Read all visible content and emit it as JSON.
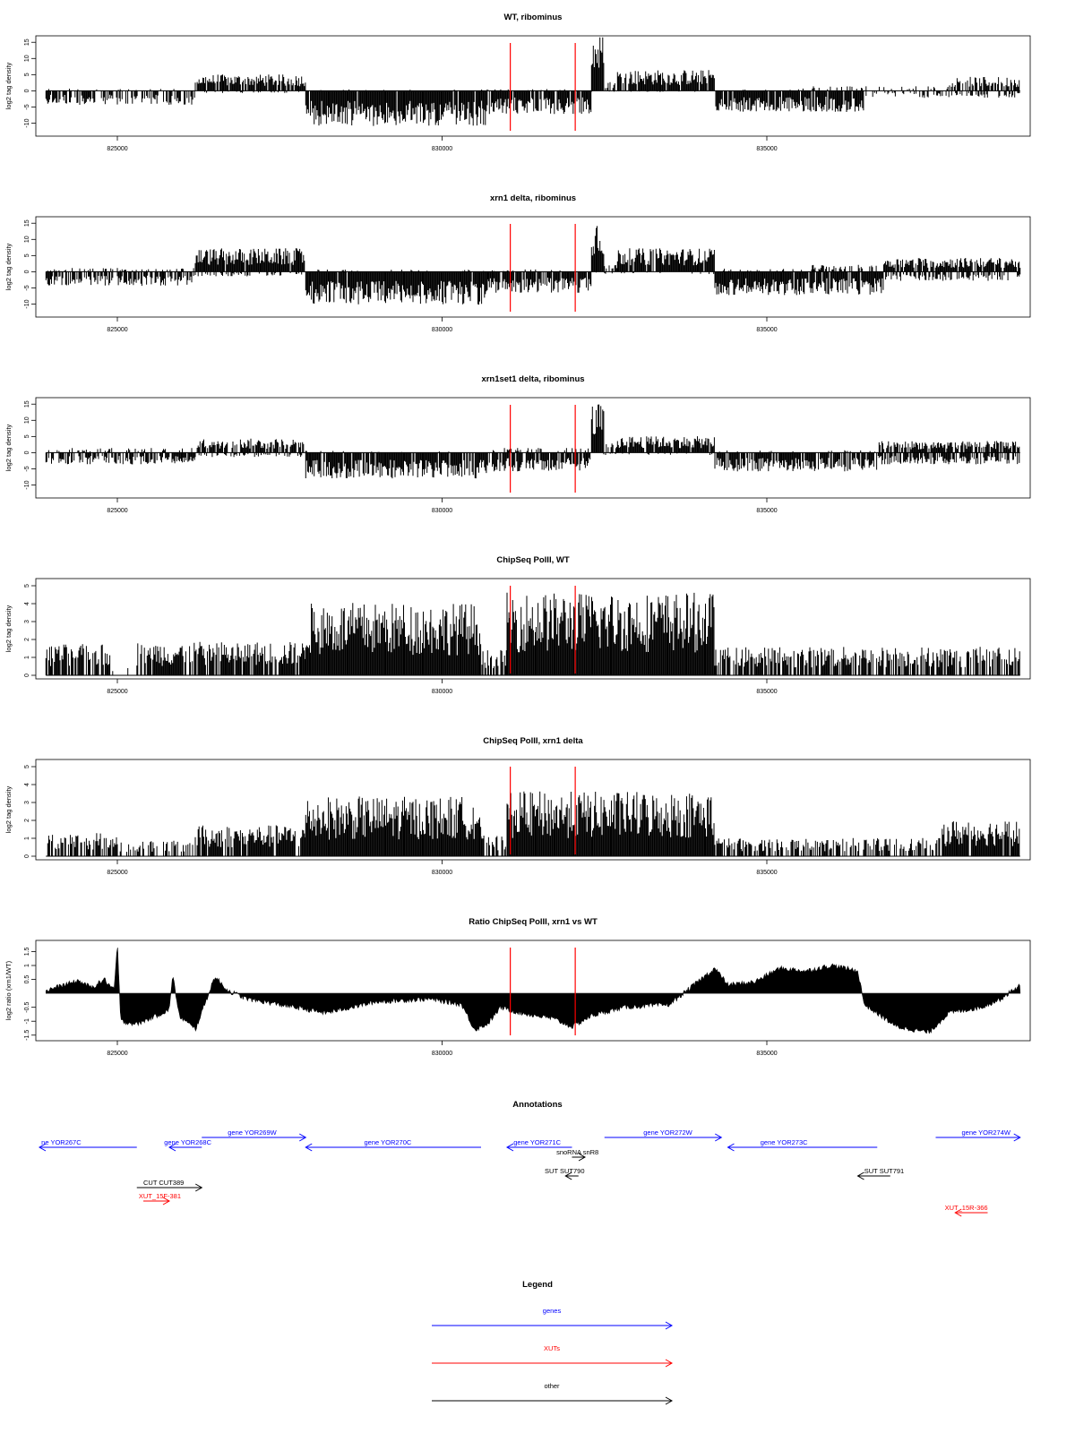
{
  "colors": {
    "bars": "#000000",
    "markers": "#ff0000",
    "genes": "#0000ff",
    "xuts": "#ff0000",
    "other": "#000000"
  },
  "markers": [
    831050,
    832050
  ],
  "chart_data": [
    {
      "type": "bar",
      "title": "WT, ribominus",
      "ylabel": "log2 tag density",
      "xlim": [
        823800,
        839000
      ],
      "ylim": [
        -14,
        17
      ],
      "yticks": [
        -10,
        -5,
        0,
        5,
        10,
        15
      ],
      "xticks": [
        825000,
        830000,
        835000
      ],
      "x_tick_labels": [
        "825000",
        "830000",
        "835000"
      ],
      "series": [
        {
          "strand": "plus",
          "segments": [
            {
              "from": 823900,
              "to": 826200,
              "level": 0.5,
              "sparsity": 0.9
            },
            {
              "from": 826200,
              "to": 827900,
              "level": 3.5,
              "sparsity": 0.1
            },
            {
              "from": 827900,
              "to": 830700,
              "level": 0.3,
              "sparsity": 0.95
            },
            {
              "from": 830700,
              "to": 832300,
              "level": 0.4,
              "sparsity": 0.92
            },
            {
              "from": 832300,
              "to": 832500,
              "level": 12.5,
              "sparsity": 0
            },
            {
              "from": 832500,
              "to": 832700,
              "level": 2,
              "sparsity": 0.5
            },
            {
              "from": 832700,
              "to": 834200,
              "level": 4.5,
              "sparsity": 0.05
            },
            {
              "from": 834200,
              "to": 835500,
              "level": 0.4,
              "sparsity": 0.92
            },
            {
              "from": 835500,
              "to": 837800,
              "level": 1,
              "sparsity": 0.8
            },
            {
              "from": 837800,
              "to": 838900,
              "level": 3,
              "sparsity": 0.3
            }
          ]
        },
        {
          "strand": "minus",
          "segments": [
            {
              "from": 823900,
              "to": 826200,
              "level": -3,
              "sparsity": 0.35
            },
            {
              "from": 826200,
              "to": 827900,
              "level": -0.5,
              "sparsity": 0.85
            },
            {
              "from": 827900,
              "to": 830700,
              "level": -7.5,
              "sparsity": 0.02
            },
            {
              "from": 830700,
              "to": 832300,
              "level": -5,
              "sparsity": 0.1
            },
            {
              "from": 832300,
              "to": 834200,
              "level": -0.3,
              "sparsity": 0.95
            },
            {
              "from": 834200,
              "to": 836500,
              "level": -4.5,
              "sparsity": 0.1
            },
            {
              "from": 836500,
              "to": 838900,
              "level": -1.5,
              "sparsity": 0.6
            }
          ]
        }
      ]
    },
    {
      "type": "bar",
      "title": "xrn1 delta, ribominus",
      "ylabel": "log2 tag density",
      "xlim": [
        823800,
        839000
      ],
      "ylim": [
        -14,
        17
      ],
      "yticks": [
        -10,
        -5,
        0,
        5,
        10,
        15
      ],
      "xticks": [
        825000,
        830000,
        835000
      ],
      "x_tick_labels": [
        "825000",
        "830000",
        "835000"
      ],
      "series": [
        {
          "strand": "plus",
          "segments": [
            {
              "from": 823900,
              "to": 826200,
              "level": 0.8,
              "sparsity": 0.8
            },
            {
              "from": 826200,
              "to": 827900,
              "level": 5,
              "sparsity": 0.05
            },
            {
              "from": 827900,
              "to": 830700,
              "level": 0.5,
              "sparsity": 0.92
            },
            {
              "from": 830700,
              "to": 832300,
              "level": 0.5,
              "sparsity": 0.9
            },
            {
              "from": 832300,
              "to": 832500,
              "level": 12,
              "sparsity": 0
            },
            {
              "from": 832500,
              "to": 832700,
              "level": 2,
              "sparsity": 0.5
            },
            {
              "from": 832700,
              "to": 834200,
              "level": 5,
              "sparsity": 0.05
            },
            {
              "from": 834200,
              "to": 835700,
              "level": 0.7,
              "sparsity": 0.85
            },
            {
              "from": 835700,
              "to": 836800,
              "level": 1.5,
              "sparsity": 0.6
            },
            {
              "from": 836800,
              "to": 838900,
              "level": 3,
              "sparsity": 0.15
            }
          ]
        },
        {
          "strand": "minus",
          "segments": [
            {
              "from": 823900,
              "to": 826200,
              "level": -3,
              "sparsity": 0.3
            },
            {
              "from": 826200,
              "to": 827900,
              "level": -1,
              "sparsity": 0.7
            },
            {
              "from": 827900,
              "to": 830700,
              "level": -7,
              "sparsity": 0.02
            },
            {
              "from": 830700,
              "to": 832300,
              "level": -4.5,
              "sparsity": 0.1
            },
            {
              "from": 832300,
              "to": 834200,
              "level": -0.5,
              "sparsity": 0.9
            },
            {
              "from": 834200,
              "to": 836800,
              "level": -5,
              "sparsity": 0.05
            },
            {
              "from": 836800,
              "to": 838900,
              "level": -2,
              "sparsity": 0.5
            }
          ]
        }
      ]
    },
    {
      "type": "bar",
      "title": "xrn1set1 delta, ribominus",
      "ylabel": "log2 tag density",
      "xlim": [
        823800,
        839000
      ],
      "ylim": [
        -14,
        17
      ],
      "yticks": [
        -10,
        -5,
        0,
        5,
        10,
        15
      ],
      "xticks": [
        825000,
        830000,
        835000
      ],
      "x_tick_labels": [
        "825000",
        "830000",
        "835000"
      ],
      "series": [
        {
          "strand": "plus",
          "segments": [
            {
              "from": 823900,
              "to": 826200,
              "level": 1,
              "sparsity": 0.8
            },
            {
              "from": 826200,
              "to": 827900,
              "level": 3,
              "sparsity": 0.2
            },
            {
              "from": 827900,
              "to": 830700,
              "level": 0.4,
              "sparsity": 0.92
            },
            {
              "from": 830700,
              "to": 832300,
              "level": 1,
              "sparsity": 0.7
            },
            {
              "from": 832300,
              "to": 832500,
              "level": 10.5,
              "sparsity": 0
            },
            {
              "from": 832500,
              "to": 832700,
              "level": 2,
              "sparsity": 0.5
            },
            {
              "from": 832700,
              "to": 834200,
              "level": 3.5,
              "sparsity": 0.1
            },
            {
              "from": 834200,
              "to": 836700,
              "level": 0.5,
              "sparsity": 0.9
            },
            {
              "from": 836700,
              "to": 838900,
              "level": 2.5,
              "sparsity": 0.25
            }
          ]
        },
        {
          "strand": "minus",
          "segments": [
            {
              "from": 823900,
              "to": 826200,
              "level": -2.5,
              "sparsity": 0.3
            },
            {
              "from": 826200,
              "to": 827900,
              "level": -1,
              "sparsity": 0.7
            },
            {
              "from": 827900,
              "to": 830700,
              "level": -5.5,
              "sparsity": 0.05
            },
            {
              "from": 830700,
              "to": 832300,
              "level": -4,
              "sparsity": 0.2
            },
            {
              "from": 832300,
              "to": 834200,
              "level": -0.5,
              "sparsity": 0.9
            },
            {
              "from": 834200,
              "to": 836700,
              "level": -4,
              "sparsity": 0.1
            },
            {
              "from": 836700,
              "to": 838900,
              "level": -2.5,
              "sparsity": 0.3
            }
          ]
        }
      ]
    },
    {
      "type": "bar",
      "title": "ChipSeq PolII, WT",
      "ylabel": "log2 tag density",
      "xlim": [
        823800,
        839000
      ],
      "ylim": [
        -0.2,
        5.4
      ],
      "yticks": [
        0,
        1,
        2,
        3,
        4,
        5
      ],
      "xticks": [
        825000,
        830000,
        835000
      ],
      "x_tick_labels": [
        "825000",
        "830000",
        "835000"
      ],
      "series": [
        {
          "strand": "plus",
          "segments": [
            {
              "from": 823900,
              "to": 824900,
              "level": 1.2,
              "sparsity": 0.25
            },
            {
              "from": 824900,
              "to": 825300,
              "level": 0.3,
              "sparsity": 0.9
            },
            {
              "from": 825300,
              "to": 827900,
              "level": 1.3,
              "sparsity": 0.2
            },
            {
              "from": 827900,
              "to": 830600,
              "level": 2.8,
              "sparsity": 0
            },
            {
              "from": 830600,
              "to": 831000,
              "level": 1,
              "sparsity": 0.4
            },
            {
              "from": 831000,
              "to": 834200,
              "level": 3.2,
              "sparsity": 0
            },
            {
              "from": 834200,
              "to": 838900,
              "level": 1.1,
              "sparsity": 0.25
            }
          ]
        }
      ]
    },
    {
      "type": "bar",
      "title": "ChipSeq PolII, xrn1 delta",
      "ylabel": "log2 tag density",
      "xlim": [
        823800,
        839000
      ],
      "ylim": [
        -0.2,
        5.4
      ],
      "yticks": [
        0,
        1,
        2,
        3,
        4,
        5
      ],
      "xticks": [
        825000,
        830000,
        835000
      ],
      "x_tick_labels": [
        "825000",
        "830000",
        "835000"
      ],
      "series": [
        {
          "strand": "plus",
          "segments": [
            {
              "from": 823900,
              "to": 825000,
              "level": 0.9,
              "sparsity": 0.3
            },
            {
              "from": 825000,
              "to": 826200,
              "level": 0.6,
              "sparsity": 0.6
            },
            {
              "from": 826200,
              "to": 827900,
              "level": 1.2,
              "sparsity": 0.15
            },
            {
              "from": 827900,
              "to": 830600,
              "level": 2.3,
              "sparsity": 0
            },
            {
              "from": 830600,
              "to": 831000,
              "level": 0.8,
              "sparsity": 0.4
            },
            {
              "from": 831000,
              "to": 834200,
              "level": 2.5,
              "sparsity": 0
            },
            {
              "from": 834200,
              "to": 837700,
              "level": 0.7,
              "sparsity": 0.4
            },
            {
              "from": 837700,
              "to": 838900,
              "level": 1.4,
              "sparsity": 0.05
            }
          ]
        }
      ]
    },
    {
      "type": "area",
      "title": "Ratio ChipSeq PolII, xrn1 vs WT",
      "ylabel": "log2 ratio (xrn1/WT)",
      "xlim": [
        823800,
        839000
      ],
      "ylim": [
        -1.7,
        1.9
      ],
      "yticks": [
        -1.5,
        -1,
        -0.5,
        0.5,
        1,
        1.5
      ],
      "y_tick_labels": [
        "-1.5",
        "-1",
        "-0.5",
        "0.5",
        "1",
        "1.5"
      ],
      "xticks": [
        825000,
        830000,
        835000
      ],
      "x_tick_labels": [
        "825000",
        "830000",
        "835000"
      ],
      "x": [
        823900,
        824400,
        824600,
        824800,
        824950,
        825000,
        825050,
        825300,
        825800,
        825850,
        825950,
        826200,
        826500,
        826700,
        827000,
        827500,
        828200,
        829000,
        829800,
        830300,
        830500,
        830700,
        830900,
        831200,
        831700,
        832000,
        832300,
        832800,
        833500,
        834200,
        834400,
        834800,
        835200,
        835600,
        836000,
        836400,
        836500,
        837000,
        837500,
        837800,
        838300,
        838600,
        838900
      ],
      "values": [
        0.1,
        0.45,
        0.2,
        0.5,
        0.1,
        1.8,
        -1,
        -1.1,
        -0.6,
        0.7,
        -0.8,
        -1.3,
        0.6,
        0.1,
        -0.2,
        -0.4,
        -0.7,
        -0.3,
        -0.2,
        -0.4,
        -1.3,
        -1.1,
        -0.5,
        -0.7,
        -0.9,
        -1.2,
        -0.8,
        -0.5,
        -0.4,
        0.9,
        0.3,
        0.4,
        0.9,
        0.8,
        1.0,
        0.8,
        -0.4,
        -1.2,
        -1.4,
        -0.7,
        -0.5,
        -0.2,
        0.3
      ]
    }
  ],
  "annotations": {
    "title": "Annotations",
    "xlim": [
      823800,
      839000
    ],
    "features": [
      {
        "type": "gene",
        "label": "ne YOR267C",
        "from": 823800,
        "to": 825300,
        "row": 1,
        "dir": "minus",
        "label_pos": 823830
      },
      {
        "type": "gene",
        "label": "gene YOR268C",
        "from": 825800,
        "to": 826300,
        "row": 1,
        "dir": "minus",
        "label_pos": 825720
      },
      {
        "type": "gene",
        "label": "gene YOR269W",
        "from": 826300,
        "to": 827900,
        "row": 0,
        "dir": "plus",
        "label_pos": 826700
      },
      {
        "type": "gene",
        "label": "gene YOR270C",
        "from": 827900,
        "to": 830600,
        "row": 1,
        "dir": "minus",
        "label_pos": 828800
      },
      {
        "type": "gene",
        "label": "gene YOR271C",
        "from": 831000,
        "to": 832000,
        "row": 1,
        "dir": "minus",
        "label_pos": 831100
      },
      {
        "type": "gene",
        "label": "gene YOR272W",
        "from": 832500,
        "to": 834300,
        "row": 0,
        "dir": "plus",
        "label_pos": 833100
      },
      {
        "type": "gene",
        "label": "gene YOR273C",
        "from": 834400,
        "to": 836700,
        "row": 1,
        "dir": "minus",
        "label_pos": 834900
      },
      {
        "type": "gene",
        "label": "gene YOR274W",
        "from": 837600,
        "to": 838900,
        "row": 0,
        "dir": "plus",
        "label_pos": 838000
      },
      {
        "type": "other",
        "label": "snoRNA snR8",
        "from": 832000,
        "to": 832200,
        "row": 2,
        "dir": "plus",
        "label_pos": 831760
      },
      {
        "type": "other",
        "label": "CUT CUT389",
        "from": 825300,
        "to": 826300,
        "row": 4,
        "dir": "plus",
        "label_pos": 825400
      },
      {
        "type": "other",
        "label": "SUT SUT790",
        "from": 831900,
        "to": 832100,
        "row": 3,
        "dir": "minus",
        "label_pos": 831580
      },
      {
        "type": "other",
        "label": "SUT SUT791",
        "from": 836400,
        "to": 836900,
        "row": 3,
        "dir": "minus",
        "label_pos": 836500
      },
      {
        "type": "xut",
        "label": "XUT_15F-381",
        "from": 825400,
        "to": 825800,
        "row": 5,
        "dir": "plus",
        "label_pos": 825330
      },
      {
        "type": "xut",
        "label": "XUT_15R-366",
        "from": 837900,
        "to": 838400,
        "row": 6,
        "dir": "minus",
        "label_pos": 837740
      }
    ]
  },
  "legend": {
    "title": "Legend",
    "items": [
      {
        "label": "genes",
        "type": "gene"
      },
      {
        "label": "XUTs",
        "type": "xut"
      },
      {
        "label": "other",
        "type": "other"
      }
    ]
  }
}
